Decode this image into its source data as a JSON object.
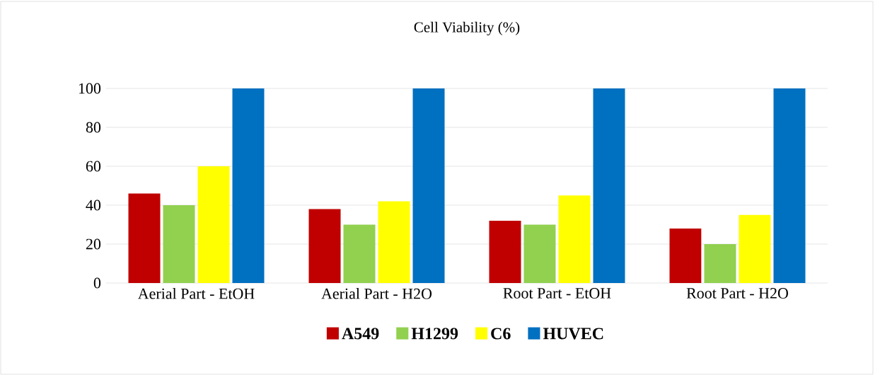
{
  "chart_data": {
    "type": "bar",
    "title": "Cell Viability (%)",
    "categories": [
      "Aerial Part - EtOH",
      "Aerial Part - H2O",
      "Root Part - EtOH",
      "Root Part - H2O"
    ],
    "series": [
      {
        "name": "A549",
        "color": "#c00000",
        "values": [
          46,
          38,
          32,
          28
        ]
      },
      {
        "name": "H1299",
        "color": "#92d050",
        "values": [
          40,
          30,
          30,
          20
        ]
      },
      {
        "name": "C6",
        "color": "#ffff00",
        "values": [
          60,
          42,
          45,
          35
        ]
      },
      {
        "name": "HUVEC",
        "color": "#0070c0",
        "values": [
          100,
          100,
          100,
          100
        ]
      }
    ],
    "ylim": [
      0,
      100
    ],
    "yticks": [
      0,
      20,
      40,
      60,
      80,
      100
    ],
    "grid": "y",
    "legend": "bottom"
  }
}
